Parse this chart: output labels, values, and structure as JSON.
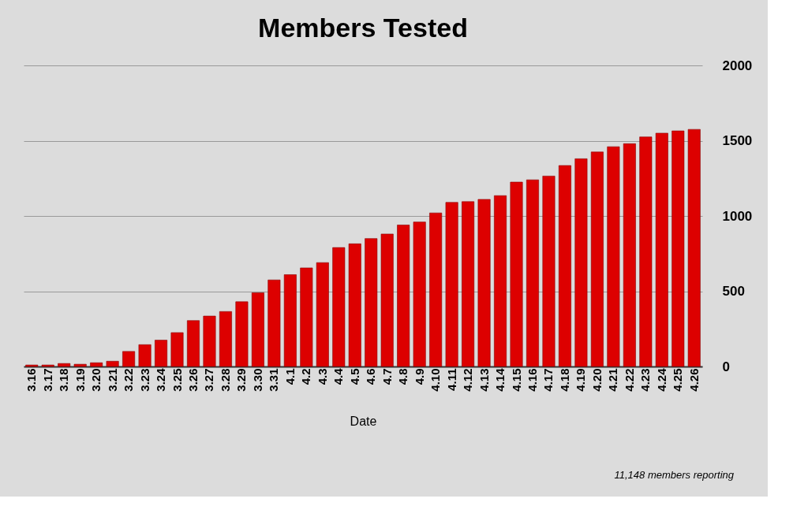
{
  "chart_data": {
    "type": "bar",
    "title": "Members Tested",
    "xlabel": "Date",
    "categories": [
      "3.16",
      "3.17",
      "3.18",
      "3.19",
      "3.20",
      "3.21",
      "3.22",
      "3.23",
      "3.24",
      "3.25",
      "3.26",
      "3.27",
      "3.28",
      "3.29",
      "3.30",
      "3.31",
      "4.1",
      "4.2",
      "4.3",
      "4.4",
      "4.5",
      "4.6",
      "4.7",
      "4.8",
      "4.9",
      "4.10",
      "4.11",
      "4.12",
      "4.13",
      "4.14",
      "4.15",
      "4.16",
      "4.17",
      "4.18",
      "4.19",
      "4.20",
      "4.21",
      "4.22",
      "4.23",
      "4.24",
      "4.25",
      "4.26"
    ],
    "values": [
      10,
      10,
      20,
      15,
      25,
      35,
      100,
      145,
      175,
      225,
      305,
      335,
      365,
      430,
      490,
      575,
      610,
      655,
      690,
      790,
      815,
      850,
      880,
      940,
      960,
      1020,
      1090,
      1095,
      1110,
      1135,
      1225,
      1240,
      1265,
      1335,
      1380,
      1425,
      1460,
      1480,
      1525,
      1550,
      1565,
      1575
    ],
    "color": "#dd0000",
    "ylim": [
      0,
      2000
    ],
    "yticks": [
      0,
      500,
      1000,
      1500,
      2000
    ],
    "grid": "y",
    "annotations": [
      "11,148 members reporting"
    ]
  }
}
